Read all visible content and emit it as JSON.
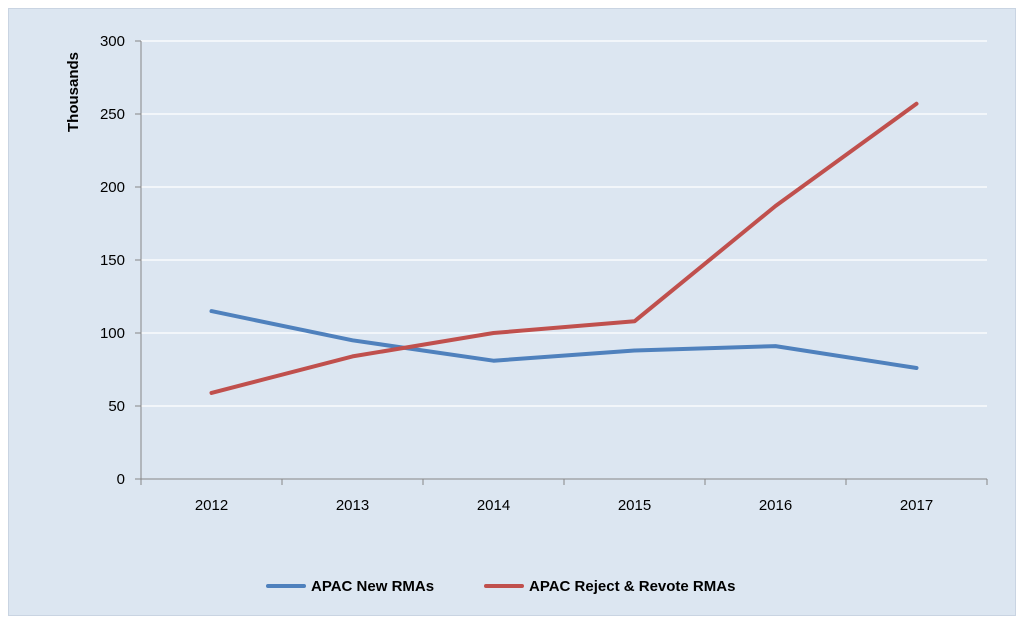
{
  "chart_data": {
    "type": "line",
    "categories": [
      "2012",
      "2013",
      "2014",
      "2015",
      "2016",
      "2017"
    ],
    "series": [
      {
        "name": "APAC New RMAs",
        "values": [
          115,
          95,
          81,
          88,
          91,
          76
        ],
        "color": "#4f81bd"
      },
      {
        "name": "APAC Reject & Revote RMAs",
        "values": [
          59,
          84,
          100,
          108,
          187,
          257
        ],
        "color": "#c0504d"
      }
    ],
    "ylabel": "Thousands",
    "xlabel": "",
    "ylim": [
      0,
      300
    ],
    "yticks": [
      "0",
      "50",
      "100",
      "150",
      "200",
      "250",
      "300"
    ],
    "grid": true,
    "legend_position": "bottom",
    "background": "#dce6f1"
  }
}
